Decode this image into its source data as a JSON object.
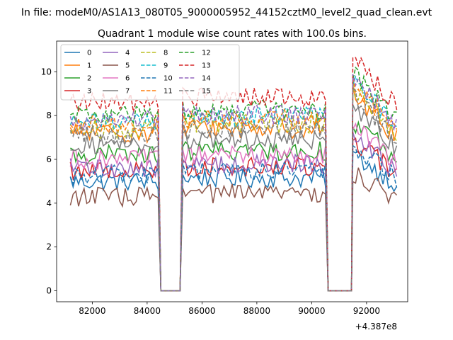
{
  "figure": {
    "suptitle": "In file: modeM0/AS1A13_080T05_9000005952_44152cztM0_level2_quad_clean.evt",
    "offset_label": "+4.387e8"
  },
  "chart_data": {
    "type": "line",
    "title": "Quadrant 1 module wise count rates with 100.0s bins.",
    "xlabel": "",
    "ylabel": "",
    "x_offset": 438700000,
    "xlim": [
      80700,
      93500
    ],
    "ylim": [
      -0.5,
      11.4
    ],
    "x_ticks": [
      82000,
      84000,
      86000,
      88000,
      90000,
      92000
    ],
    "y_ticks": [
      0,
      2,
      4,
      6,
      8,
      10
    ],
    "x_tick_labels": [
      "82000",
      "84000",
      "86000",
      "88000",
      "90000",
      "92000"
    ],
    "y_tick_labels": [
      "0",
      "2",
      "4",
      "6",
      "8",
      "10"
    ],
    "legend": {
      "placement": "upper-left",
      "columns": 5
    },
    "segments": [
      {
        "start": 81200,
        "end": 84400,
        "zero_end": 84500
      },
      {
        "start": 85300,
        "end": 90500,
        "zero_end": 90600
      },
      {
        "start": 91500,
        "end": 93100,
        "zero_end": 91500
      }
    ],
    "zero_intervals": [
      [
        84550,
        85200
      ],
      [
        90650,
        91450
      ]
    ],
    "series": [
      {
        "name": "0",
        "color": "#1f77b4",
        "dash": "solid",
        "level": 5.0
      },
      {
        "name": "1",
        "color": "#ff7f0e",
        "dash": "solid",
        "level": 7.2
      },
      {
        "name": "2",
        "color": "#2ca02c",
        "dash": "solid",
        "level": 6.2
      },
      {
        "name": "3",
        "color": "#d62728",
        "dash": "solid",
        "level": 5.5
      },
      {
        "name": "4",
        "color": "#9467bd",
        "dash": "solid",
        "level": 5.6
      },
      {
        "name": "5",
        "color": "#8c564b",
        "dash": "solid",
        "level": 4.3
      },
      {
        "name": "6",
        "color": "#e377c2",
        "dash": "solid",
        "level": 6.0
      },
      {
        "name": "7",
        "color": "#7f7f7f",
        "dash": "solid",
        "level": 6.7
      },
      {
        "name": "8",
        "color": "#bcbd22",
        "dash": "dashed",
        "level": 7.4
      },
      {
        "name": "9",
        "color": "#17becf",
        "dash": "dashed",
        "level": 7.7
      },
      {
        "name": "10",
        "color": "#1f77b4",
        "dash": "dashed",
        "level": 5.3
      },
      {
        "name": "11",
        "color": "#ff7f0e",
        "dash": "dashed",
        "level": 7.6
      },
      {
        "name": "12",
        "color": "#2ca02c",
        "dash": "dashed",
        "level": 8.0
      },
      {
        "name": "13",
        "color": "#d62728",
        "dash": "dashed",
        "level": 8.6
      },
      {
        "name": "14",
        "color": "#9467bd",
        "dash": "dashed",
        "level": 7.8
      },
      {
        "name": "15",
        "color": "#7f7f7f",
        "dash": "dashed",
        "level": 7.1
      }
    ]
  }
}
